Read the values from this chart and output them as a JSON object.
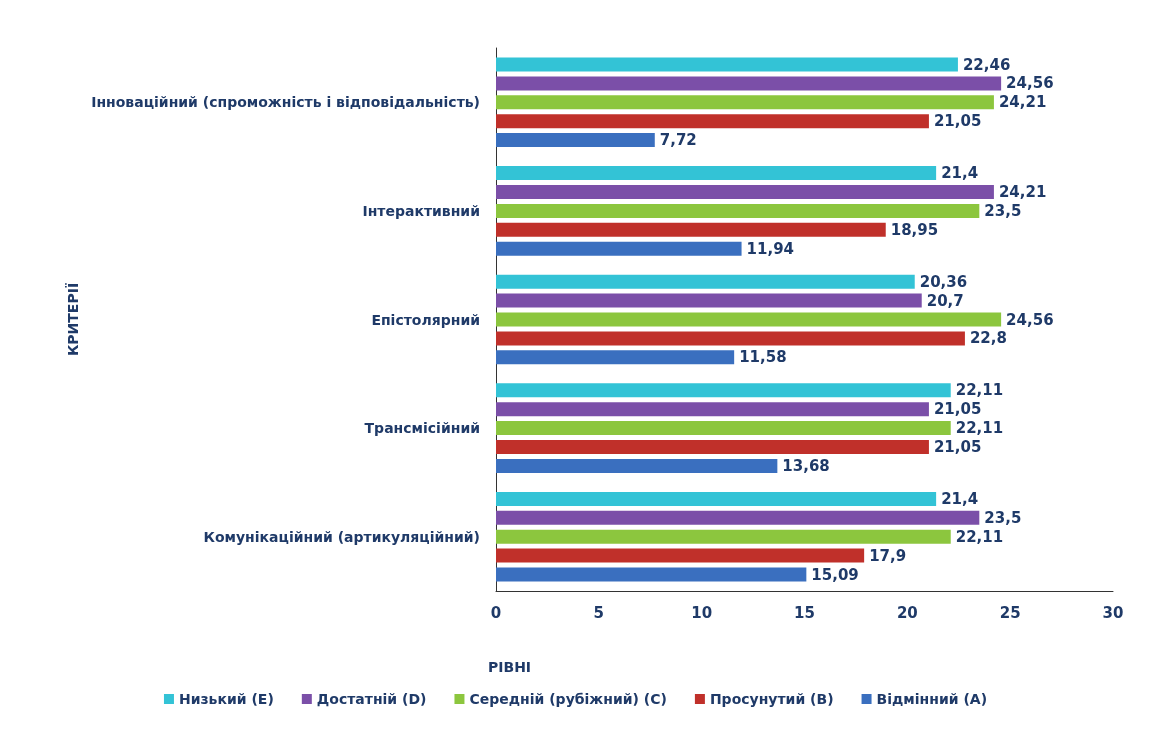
{
  "chart_data": {
    "type": "bar",
    "orientation": "horizontal",
    "xlabel": "РІВНІ",
    "ylabel": "КРИТЕРІЇ",
    "categories": [
      "Інноваційний (спроможність і відповідальність)",
      "Інтерактивний",
      "Епістолярний",
      "Трансмісійний",
      "Комунікаційний (артикуляційний)"
    ],
    "series": [
      {
        "name": "Низький (E)",
        "color": "#33c3d6",
        "values": [
          22.46,
          21.4,
          20.36,
          22.11,
          21.4
        ],
        "value_labels": [
          "22,46",
          "21,4",
          "20,36",
          "22,11",
          "21,4"
        ]
      },
      {
        "name": "Достатній (D)",
        "color": "#7b4fa8",
        "values": [
          24.56,
          24.21,
          20.7,
          21.05,
          23.5
        ],
        "value_labels": [
          "24,56",
          "24,21",
          "20,7",
          "21,05",
          "23,5"
        ]
      },
      {
        "name": "Середній (рубіжний) (C)",
        "color": "#8cc63e",
        "values": [
          24.21,
          23.5,
          24.56,
          22.11,
          22.11
        ],
        "value_labels": [
          "24,21",
          "23,5",
          "24,56",
          "22,11",
          "22,11"
        ]
      },
      {
        "name": "Просунутий (B)",
        "color": "#c0302a",
        "values": [
          21.05,
          18.95,
          22.8,
          21.05,
          17.9
        ],
        "value_labels": [
          "21,05",
          "18,95",
          "22,8",
          "21,05",
          "17,9"
        ]
      },
      {
        "name": "Відмінний (A)",
        "color": "#3a6fbf",
        "values": [
          7.72,
          11.94,
          11.58,
          13.68,
          15.09
        ],
        "value_labels": [
          "7,72",
          "11,94",
          "11,58",
          "13,68",
          "15,09"
        ]
      }
    ],
    "xlim": [
      0,
      30
    ],
    "xticks": [
      0,
      5,
      10,
      15,
      20,
      25,
      30
    ],
    "grid": false,
    "legend": "bottom"
  }
}
